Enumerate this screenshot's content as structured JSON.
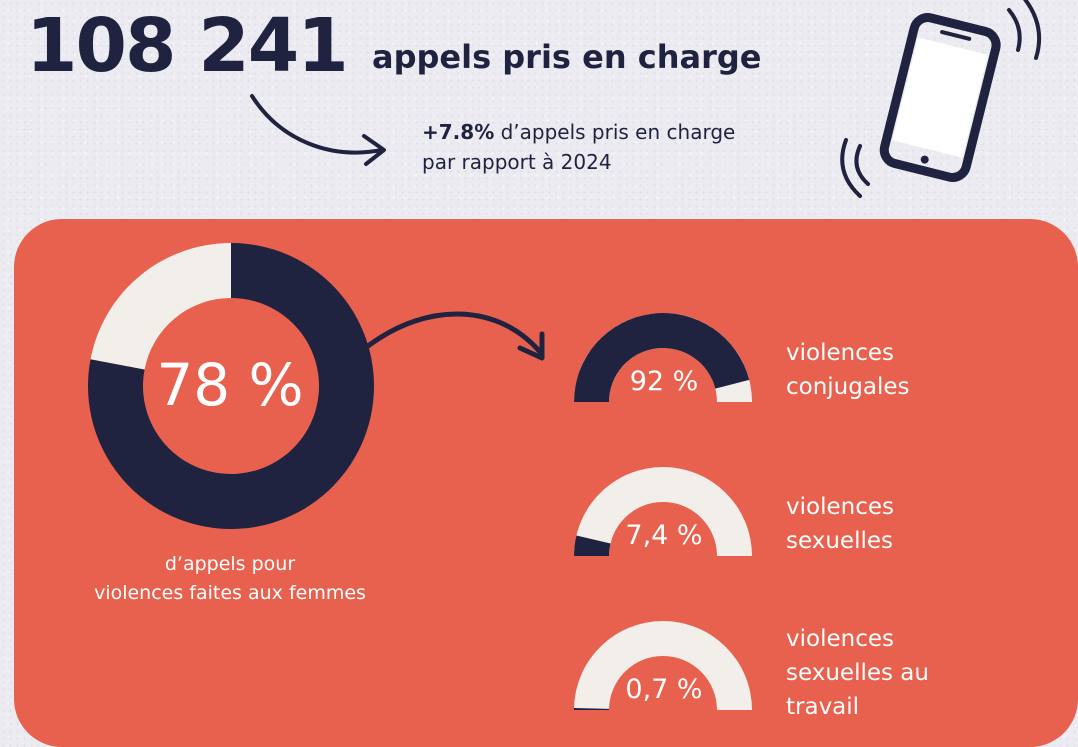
{
  "header": {
    "calls_total": "108 241",
    "calls_label": "appels pris en charge",
    "growth_value": "+7.8%",
    "growth_line1": " d’appels pris en charge",
    "growth_line2": "par rapport à 2024"
  },
  "icons": {
    "arrow_header": "curved-arrow-icon",
    "phone": "ringing-phone-icon",
    "arrow_panel": "curved-arrow-icon"
  },
  "colors": {
    "navy": "#1f2340",
    "coral": "#e8604e",
    "cream": "#f2eee9",
    "background": "#ecebf1"
  },
  "chart_data": [
    {
      "type": "pie",
      "style": "donut",
      "value_label": "78 %",
      "values": [
        78,
        22
      ],
      "colors": [
        "#1f2340",
        "#f2eee9"
      ],
      "caption": "d’appels pour\nviolences faites aux femmes"
    },
    {
      "type": "pie",
      "style": "half-donut gauges",
      "categories": [
        "violences conjugales",
        "violences sexuelles",
        "violences sexuelles au travail"
      ],
      "values": [
        92,
        7.4,
        0.7
      ],
      "value_labels": [
        "92 %",
        "7,4 %",
        "0,7 %"
      ],
      "labels": [
        "violences\nconjugales",
        "violences\nsexuelles",
        "violences\nsexuelles au\ntravail"
      ],
      "colors": [
        "#1f2340",
        "#f2eee9"
      ]
    }
  ]
}
